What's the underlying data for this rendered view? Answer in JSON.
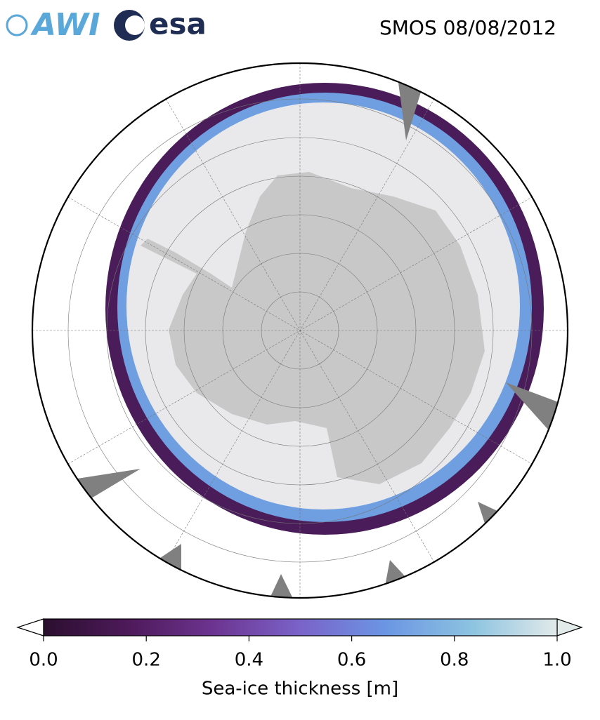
{
  "logos": [
    "AWI",
    "esa"
  ],
  "chart_data": {
    "type": "colorbar",
    "title": "SMOS 08/08/2012",
    "xlabel": "Sea-ice thickness [m]",
    "xlim": [
      0,
      1
    ],
    "xticks": [
      {
        "value": 0,
        "label": "0.0"
      },
      {
        "value": 0.2,
        "label": "0.2"
      },
      {
        "value": 0.4,
        "label": "0.4"
      },
      {
        "value": 0.6,
        "label": "0.6"
      },
      {
        "value": 0.8,
        "label": "0.8"
      },
      {
        "value": 1,
        "label": "1.0"
      }
    ],
    "colormap": [
      "#2b0f2f",
      "#4e1a5a",
      "#6d3591",
      "#7a63c9",
      "#6b96e3",
      "#8cc3e0",
      "#e2eaea"
    ]
  }
}
